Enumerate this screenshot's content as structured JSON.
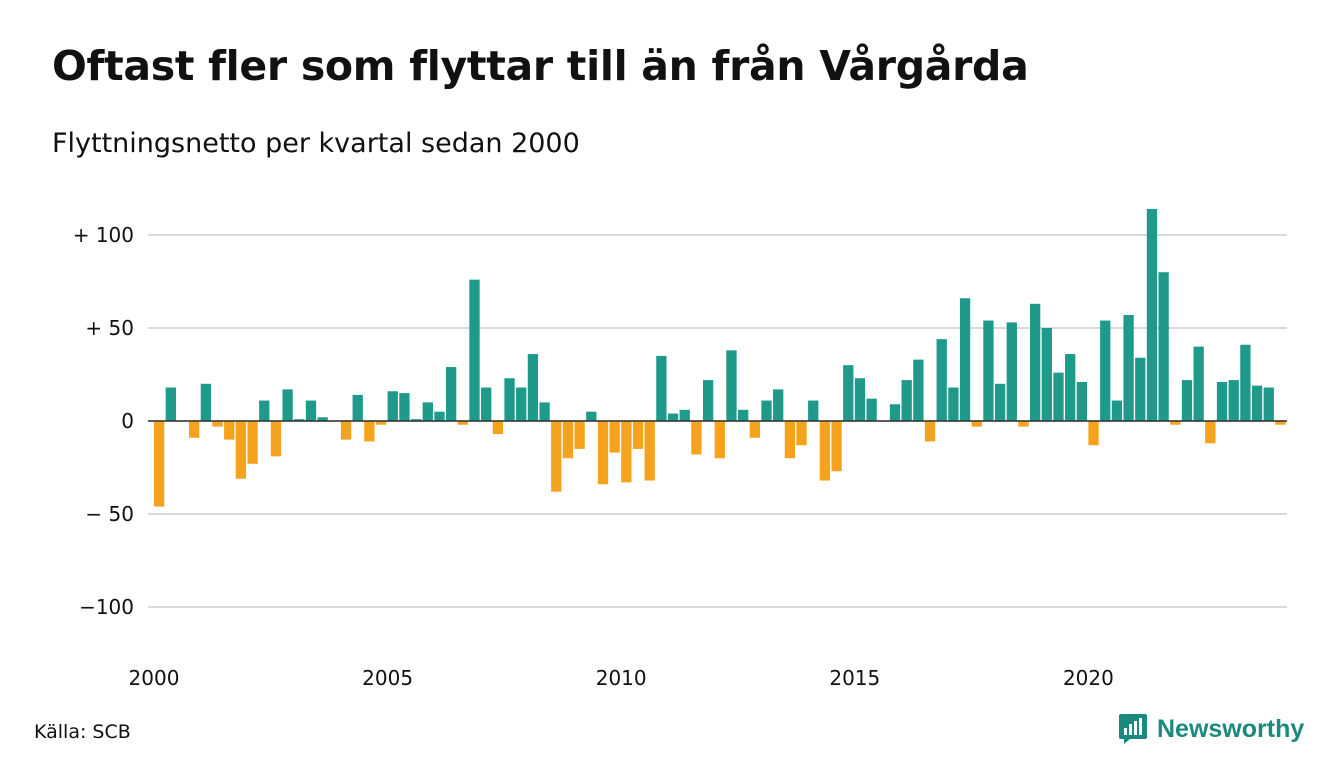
{
  "header": {
    "title": "Oftast fler som flyttar till än från Vårgårda",
    "subtitle": "Flyttningsnetto per kvartal sedan 2000"
  },
  "footer": {
    "source": "Källa: SCB",
    "brand": "Newsworthy"
  },
  "colors": {
    "positive": "#1f9a8a",
    "negative": "#f5a21d",
    "grid": "#d9d9d9",
    "brand": "#1b8a7e"
  },
  "chart_data": {
    "type": "bar",
    "title": "Oftast fler som flyttar till än från Vårgårda",
    "subtitle": "Flyttningsnetto per kvartal sedan 2000",
    "ylim": [
      -125,
      120
    ],
    "yticks": [
      {
        "value": 100,
        "label": "+ 100"
      },
      {
        "value": 50,
        "label": "+  50"
      },
      {
        "value": 0,
        "label": "0"
      },
      {
        "value": -50,
        "label": "− 50"
      },
      {
        "value": -100,
        "label": "−100"
      }
    ],
    "xticks": [
      "2000",
      "2005",
      "2010",
      "2015",
      "2020"
    ],
    "grid": true,
    "legend": "none",
    "start_year": 2000,
    "values": [
      -46,
      18,
      0,
      -9,
      20,
      -3,
      -10,
      -31,
      -23,
      11,
      -19,
      17,
      1,
      11,
      2,
      0,
      -10,
      14,
      -11,
      -2,
      16,
      15,
      1,
      10,
      5,
      29,
      -2,
      76,
      18,
      -7,
      23,
      18,
      36,
      10,
      -38,
      -20,
      -15,
      5,
      -34,
      -17,
      -33,
      -15,
      -32,
      35,
      4,
      6,
      -18,
      22,
      -20,
      38,
      6,
      -9,
      11,
      17,
      -20,
      -13,
      11,
      -32,
      -27,
      30,
      23,
      12,
      0,
      9,
      22,
      33,
      -11,
      44,
      18,
      66,
      -3,
      54,
      20,
      53,
      -3,
      63,
      50,
      26,
      36,
      21,
      -13,
      54,
      11,
      57,
      34,
      114,
      80,
      -2,
      22,
      40,
      -12,
      21,
      22,
      41,
      19,
      18,
      -2
    ]
  }
}
